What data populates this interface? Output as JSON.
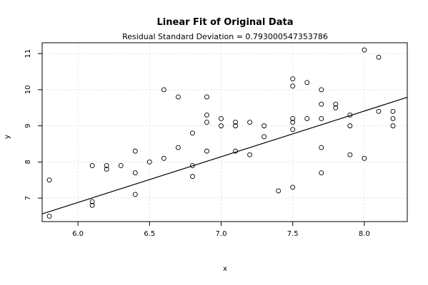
{
  "chart_data": {
    "type": "scatter",
    "title": "Linear Fit of Original Data",
    "subtitle": "Residual Standard Deviation =  0.793000547353786",
    "xlabel": "x",
    "ylabel": "y",
    "xlim": [
      5.75,
      8.3
    ],
    "ylim": [
      6.35,
      11.3
    ],
    "x_ticks": [
      6.0,
      6.5,
      7.0,
      7.5,
      8.0
    ],
    "x_tick_labels": [
      "6.0",
      "6.5",
      "7.0",
      "7.5",
      "8.0"
    ],
    "y_ticks": [
      7,
      8,
      9,
      10,
      11
    ],
    "y_tick_labels": [
      "7",
      "8",
      "9",
      "10",
      "11"
    ],
    "grid": true,
    "points": [
      {
        "x": 5.8,
        "y": 7.5
      },
      {
        "x": 5.8,
        "y": 6.5
      },
      {
        "x": 6.1,
        "y": 7.9
      },
      {
        "x": 6.1,
        "y": 6.9
      },
      {
        "x": 6.1,
        "y": 6.8
      },
      {
        "x": 6.2,
        "y": 7.9
      },
      {
        "x": 6.2,
        "y": 7.8
      },
      {
        "x": 6.3,
        "y": 7.9
      },
      {
        "x": 6.4,
        "y": 8.3
      },
      {
        "x": 6.4,
        "y": 7.7
      },
      {
        "x": 6.4,
        "y": 7.1
      },
      {
        "x": 6.5,
        "y": 8.0
      },
      {
        "x": 6.6,
        "y": 10.0
      },
      {
        "x": 6.6,
        "y": 8.1
      },
      {
        "x": 6.7,
        "y": 9.8
      },
      {
        "x": 6.7,
        "y": 8.4
      },
      {
        "x": 6.8,
        "y": 8.8
      },
      {
        "x": 6.8,
        "y": 7.9
      },
      {
        "x": 6.8,
        "y": 7.6
      },
      {
        "x": 6.9,
        "y": 9.8
      },
      {
        "x": 6.9,
        "y": 9.3
      },
      {
        "x": 6.9,
        "y": 9.1
      },
      {
        "x": 6.9,
        "y": 8.3
      },
      {
        "x": 7.0,
        "y": 9.2
      },
      {
        "x": 7.0,
        "y": 9.0
      },
      {
        "x": 7.1,
        "y": 9.1
      },
      {
        "x": 7.1,
        "y": 9.0
      },
      {
        "x": 7.1,
        "y": 8.3
      },
      {
        "x": 7.2,
        "y": 9.1
      },
      {
        "x": 7.2,
        "y": 8.2
      },
      {
        "x": 7.3,
        "y": 9.0
      },
      {
        "x": 7.3,
        "y": 8.7
      },
      {
        "x": 7.4,
        "y": 7.2
      },
      {
        "x": 7.5,
        "y": 10.3
      },
      {
        "x": 7.5,
        "y": 10.1
      },
      {
        "x": 7.5,
        "y": 9.2
      },
      {
        "x": 7.5,
        "y": 9.1
      },
      {
        "x": 7.5,
        "y": 8.9
      },
      {
        "x": 7.5,
        "y": 7.3
      },
      {
        "x": 7.6,
        "y": 10.2
      },
      {
        "x": 7.6,
        "y": 9.2
      },
      {
        "x": 7.7,
        "y": 10.0
      },
      {
        "x": 7.7,
        "y": 9.6
      },
      {
        "x": 7.7,
        "y": 9.2
      },
      {
        "x": 7.7,
        "y": 8.4
      },
      {
        "x": 7.7,
        "y": 7.7
      },
      {
        "x": 7.8,
        "y": 9.6
      },
      {
        "x": 7.8,
        "y": 9.5
      },
      {
        "x": 7.9,
        "y": 9.3
      },
      {
        "x": 7.9,
        "y": 9.0
      },
      {
        "x": 7.9,
        "y": 8.2
      },
      {
        "x": 8.0,
        "y": 11.1
      },
      {
        "x": 8.0,
        "y": 8.1
      },
      {
        "x": 8.1,
        "y": 10.9
      },
      {
        "x": 8.1,
        "y": 9.4
      },
      {
        "x": 8.2,
        "y": 9.4
      },
      {
        "x": 8.2,
        "y": 9.2
      },
      {
        "x": 8.2,
        "y": 9.0
      }
    ],
    "fit_line": {
      "intercept": -0.71,
      "slope": 1.265
    }
  }
}
